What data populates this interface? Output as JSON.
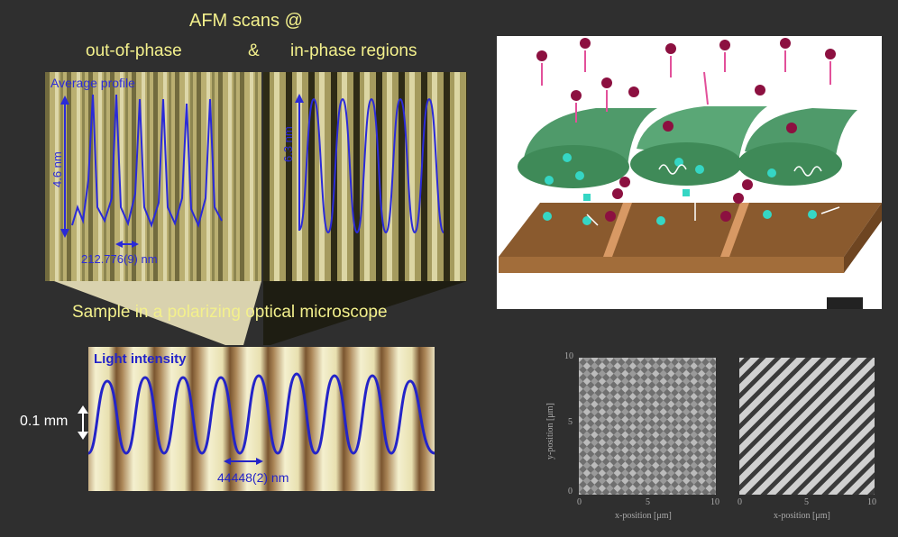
{
  "titles": {
    "main": "AFM scans @",
    "left": "out-of-phase",
    "amp": "&",
    "right": "in-phase regions",
    "polarizing": "Sample in a polarizing optical microscope"
  },
  "afm_left": {
    "label": "Average profile",
    "height": "4.6 nm",
    "period": "212.776(9) nm"
  },
  "afm_right": {
    "height": "6.3 nm"
  },
  "optical": {
    "label": "Light intensity",
    "scale": "0.1 mm",
    "period": "44448(2) nm"
  },
  "scans": {
    "y_axis": "y-position [μm]",
    "x_axis_left": "x-position [μm]",
    "x_axis_right": "x-position [μm]",
    "y_ticks": [
      "10",
      "5",
      "0"
    ],
    "x_ticks_left": [
      "0",
      "5",
      "10"
    ],
    "x_ticks_right": [
      "0",
      "5",
      "10"
    ]
  }
}
